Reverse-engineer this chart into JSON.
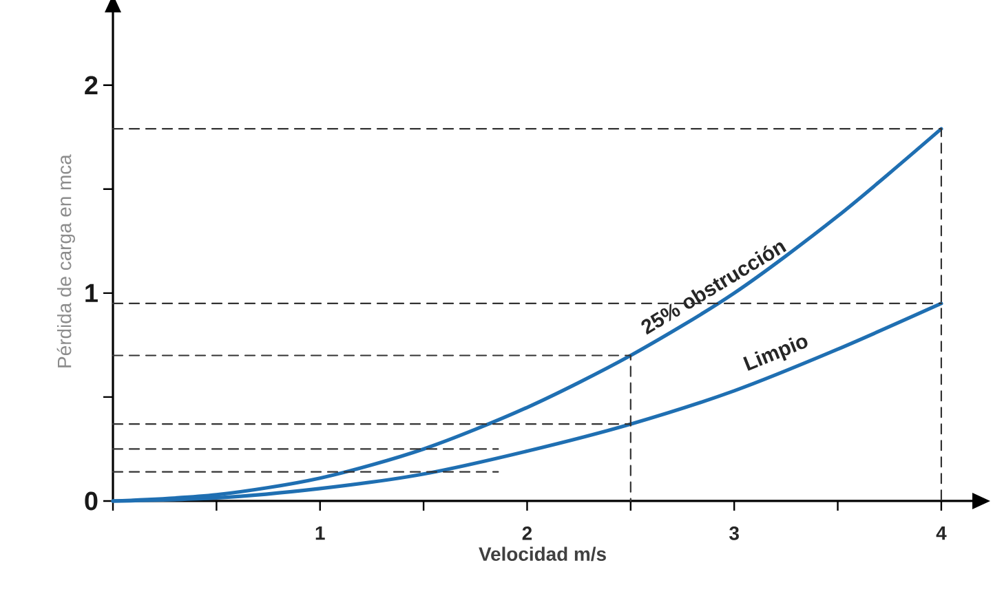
{
  "chart_data": {
    "type": "line",
    "xlabel": "Velocidad m/s",
    "ylabel": "Pérdida de carga en mca",
    "xlim": [
      0,
      4.15
    ],
    "ylim": [
      0,
      2.35
    ],
    "xticks": [
      {
        "value": 0,
        "label": null
      },
      {
        "value": 0.5,
        "label": null
      },
      1,
      {
        "value": 1.5,
        "label": null
      },
      2,
      {
        "value": 2.5,
        "label": null
      },
      3,
      {
        "value": 3.5,
        "label": null
      },
      4
    ],
    "yticks": [
      0,
      {
        "value": 0.5,
        "label": null
      },
      1,
      {
        "value": 1.5,
        "label": null
      },
      2
    ],
    "legend": false,
    "marker": "none",
    "grid": false,
    "series": [
      {
        "name": "25% obstrucción",
        "color": "#1f6fb2",
        "line_style": "solid",
        "x": [
          0,
          0.5,
          1,
          1.5,
          2,
          2.5,
          3,
          3.5,
          4
        ],
        "values": [
          0,
          0.03,
          0.11,
          0.25,
          0.45,
          0.7,
          1.0,
          1.37,
          1.79
        ]
      },
      {
        "name": "Limpio",
        "color": "#1f6fb2",
        "line_style": "solid",
        "x": [
          0,
          0.5,
          1,
          1.5,
          2,
          2.5,
          3,
          3.5,
          4
        ],
        "values": [
          0,
          0.015,
          0.06,
          0.13,
          0.24,
          0.37,
          0.53,
          0.73,
          0.95
        ]
      },
      {
        "color": "#333333",
        "line_style": "dashed",
        "x": [
          0,
          4,
          4
        ],
        "values": [
          1.79,
          1.79,
          0
        ]
      },
      {
        "color": "#333333",
        "line_style": "dashed",
        "x": [
          0,
          4
        ],
        "values": [
          0.95,
          0.95
        ]
      },
      {
        "color": "#333333",
        "line_style": "dashed",
        "x": [
          0,
          2.5,
          2.5
        ],
        "values": [
          0.7,
          0.7,
          0
        ]
      },
      {
        "color": "#333333",
        "line_style": "dashed",
        "x": [
          0,
          2.5
        ],
        "values": [
          0.37,
          0.37
        ]
      },
      {
        "color": "#333333",
        "line_style": "dashed",
        "x": [
          0,
          1.86
        ],
        "values": [
          0.25,
          0.25
        ]
      },
      {
        "color": "#333333",
        "line_style": "dashed",
        "x": [
          0,
          1.86
        ],
        "values": [
          0.14,
          0.14
        ]
      }
    ]
  }
}
